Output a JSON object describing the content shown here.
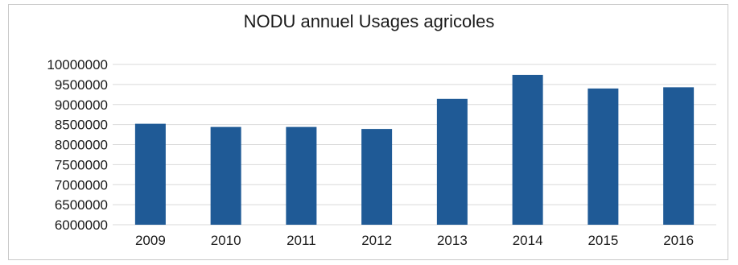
{
  "chart_data": {
    "type": "bar",
    "title": "NODU annuel Usages agricoles",
    "xlabel": "",
    "ylabel": "",
    "categories": [
      "2009",
      "2010",
      "2011",
      "2012",
      "2013",
      "2014",
      "2015",
      "2016"
    ],
    "values": [
      8520000,
      8440000,
      8440000,
      8390000,
      9140000,
      9740000,
      9400000,
      9430000
    ],
    "ylim": [
      6000000,
      10000000
    ],
    "yticks": [
      "6000000",
      "6500000",
      "7000000",
      "7500000",
      "8000000",
      "8500000",
      "9000000",
      "9500000",
      "10000000"
    ],
    "ytick_values": [
      6000000,
      6500000,
      7000000,
      7500000,
      8000000,
      8500000,
      9000000,
      9500000,
      10000000
    ],
    "grid": true,
    "legend": "none",
    "bar_color": "#1f5a96",
    "grid_color": "#d9d9d9"
  }
}
